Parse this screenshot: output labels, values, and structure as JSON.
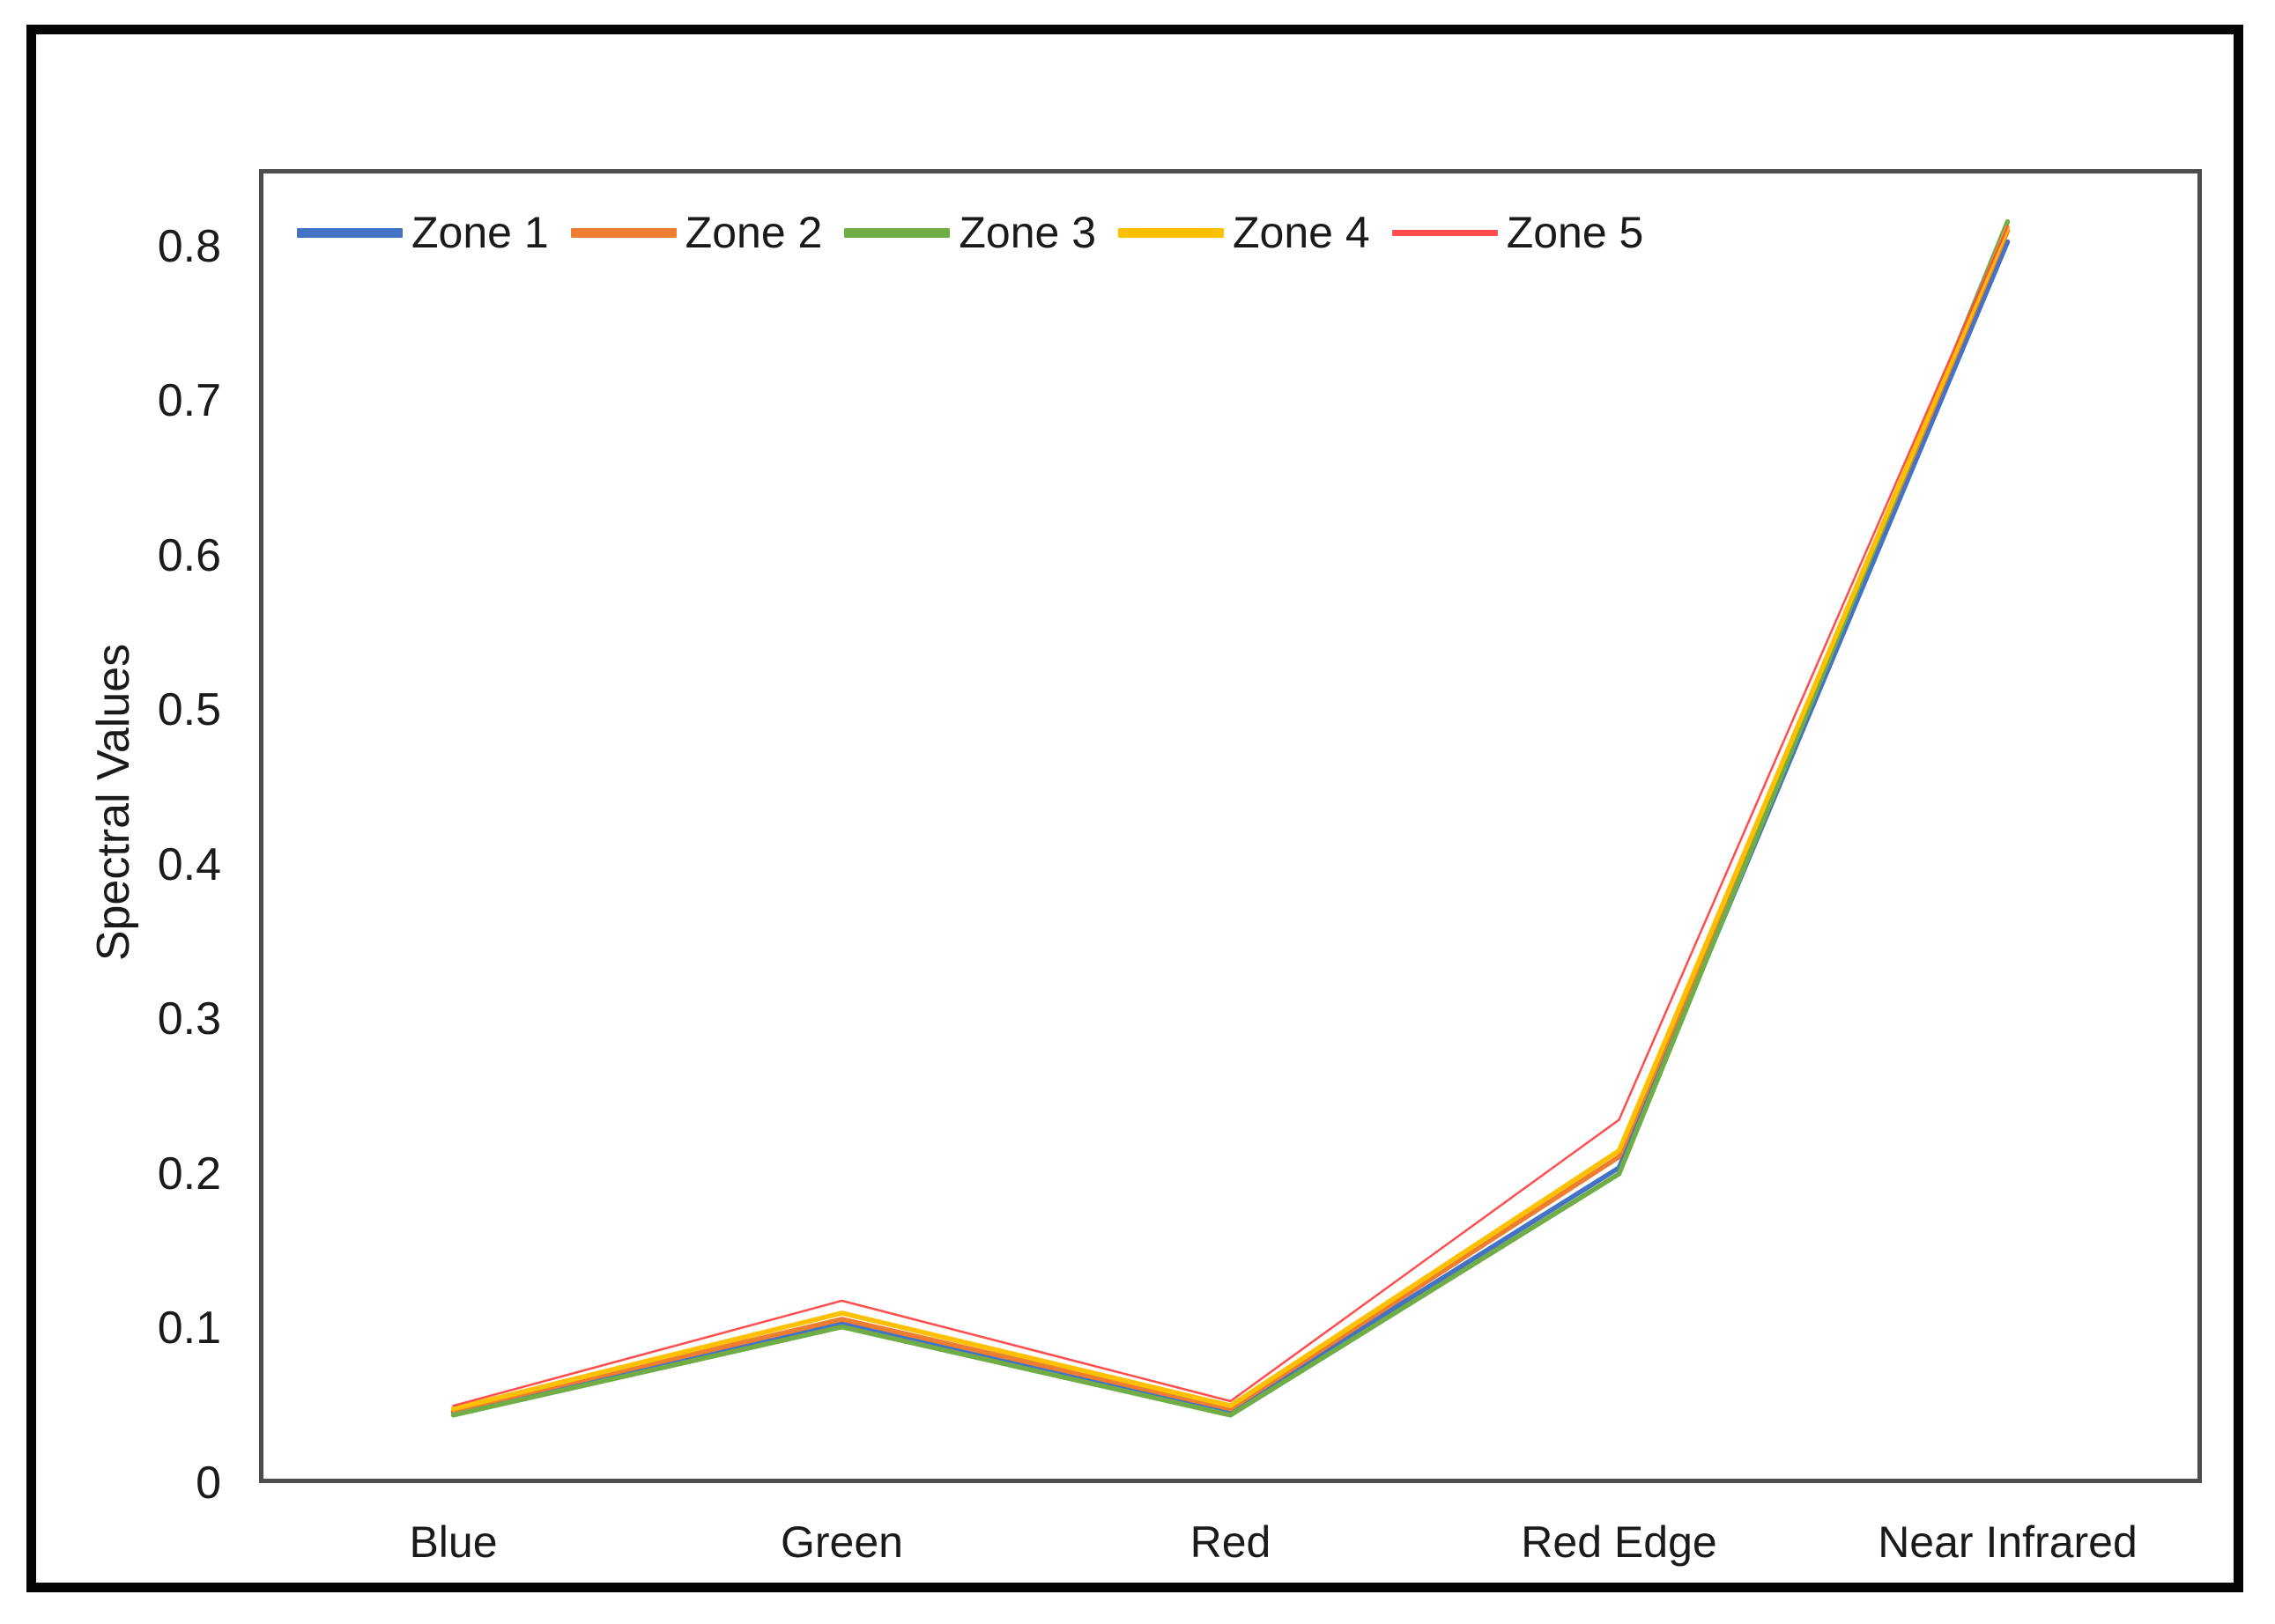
{
  "figure": {
    "background": "#ffffff",
    "frame_border_color": "#050505",
    "plot_border_color": "#4d4d4d"
  },
  "chart_data": {
    "type": "line",
    "title": "",
    "xlabel": "",
    "ylabel": "Spectral Values",
    "categories": [
      "Blue",
      "Green",
      "Red",
      "Red Edge",
      "Near Infrared"
    ],
    "series": [
      {
        "name": "Zone 1",
        "color": "#4472C4",
        "line_width": 5.5,
        "values": [
          0.046,
          0.104,
          0.047,
          0.204,
          0.803
        ]
      },
      {
        "name": "Zone 2",
        "color": "#ED7D31",
        "line_width": 5.5,
        "values": [
          0.047,
          0.106,
          0.048,
          0.211,
          0.81
        ]
      },
      {
        "name": "Zone 3",
        "color": "#70AD47",
        "line_width": 5.5,
        "values": [
          0.044,
          0.101,
          0.044,
          0.2,
          0.816
        ]
      },
      {
        "name": "Zone 4",
        "color": "#FFC000",
        "line_width": 5.5,
        "values": [
          0.048,
          0.11,
          0.05,
          0.215,
          0.812
        ]
      },
      {
        "name": "Zone 5",
        "color": "#FF4D4D",
        "line_width": 2.5,
        "values": [
          0.05,
          0.118,
          0.053,
          0.235,
          0.813
        ]
      }
    ],
    "ylim": [
      0,
      0.85
    ],
    "y_ticks": [
      "0",
      "0.1",
      "0.2",
      "0.3",
      "0.4",
      "0.5",
      "0.6",
      "0.7",
      "0.8"
    ],
    "grid": false,
    "legend_position": "top-left-inside"
  }
}
